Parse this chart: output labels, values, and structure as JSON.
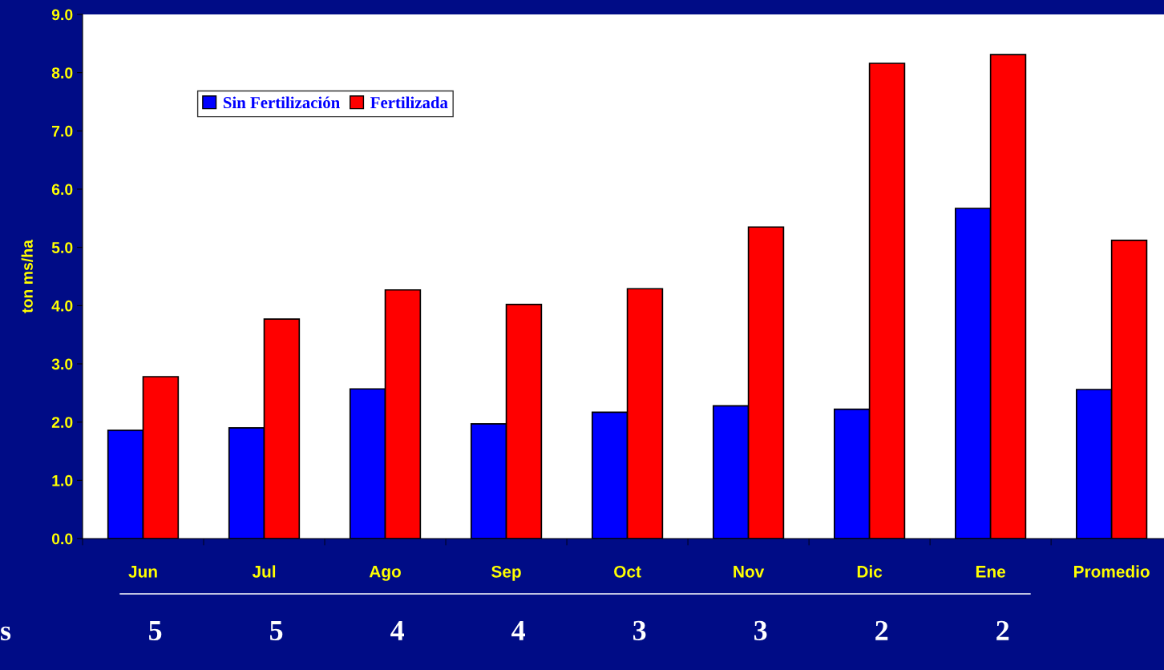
{
  "chart_data": {
    "type": "bar",
    "ylabel": "ton ms/ha",
    "categories": [
      "Jun",
      "Jul",
      "Ago",
      "Sep",
      "Oct",
      "Nov",
      "Dic",
      "Ene",
      "Promedio"
    ],
    "series": [
      {
        "name": "Sin Fertilización",
        "color": "#0000ff",
        "values": [
          1.86,
          1.9,
          2.57,
          1.97,
          2.17,
          2.28,
          2.22,
          5.67,
          2.56
        ]
      },
      {
        "name": "Fertilizada",
        "color": "#ff0000",
        "values": [
          2.78,
          3.77,
          4.27,
          4.02,
          4.29,
          5.35,
          8.16,
          8.31,
          5.12
        ]
      }
    ],
    "ylim": [
      0,
      9
    ],
    "yticks": [
      {
        "value": 0,
        "label": "0.0"
      },
      {
        "value": 1,
        "label": "1.0"
      },
      {
        "value": 2,
        "label": "2.0"
      },
      {
        "value": 3,
        "label": "3.0"
      },
      {
        "value": 4,
        "label": "4.0"
      },
      {
        "value": 5,
        "label": "5.0"
      },
      {
        "value": 6,
        "label": "6.0"
      },
      {
        "value": 7,
        "label": "7.0"
      },
      {
        "value": 8,
        "label": "8.0"
      },
      {
        "value": 9,
        "label": "9.0"
      }
    ],
    "grid": false,
    "legend": "top left",
    "annotations": [
      "s",
      "5",
      "5",
      "4",
      "4",
      "3",
      "3",
      "2",
      "2"
    ]
  }
}
